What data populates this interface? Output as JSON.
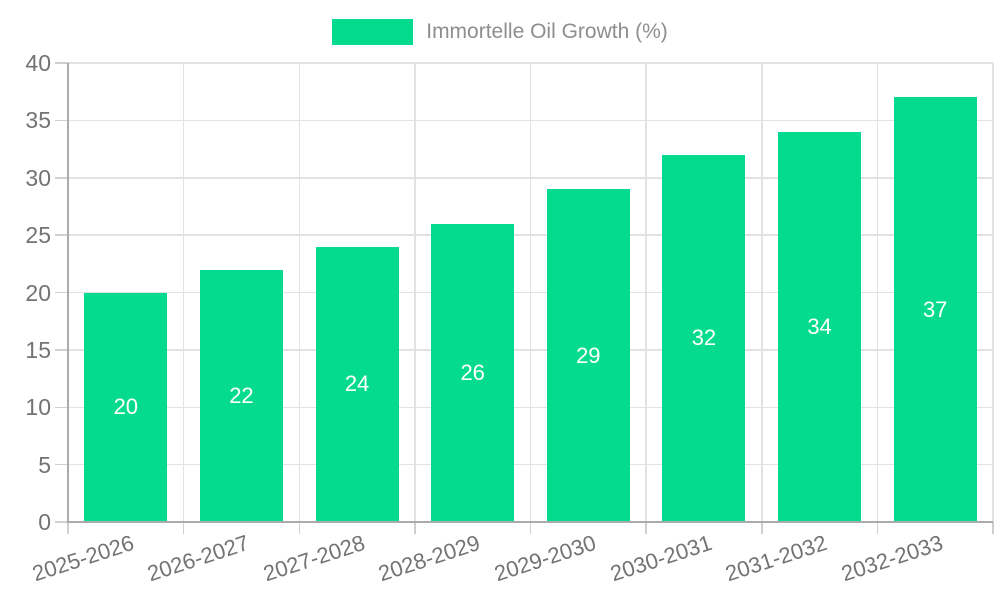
{
  "chart_data": {
    "type": "bar",
    "title": "",
    "series_name": "Immortelle Oil Growth (%)",
    "categories": [
      "2025-2026",
      "2026-2027",
      "2027-2028",
      "2028-2029",
      "2029-2030",
      "2030-2031",
      "2031-2032",
      "2032-2033"
    ],
    "values": [
      20,
      22,
      24,
      26,
      29,
      32,
      34,
      37
    ],
    "xlabel": "",
    "ylabel": "",
    "ylim": [
      0,
      40
    ],
    "yticks": [
      0,
      5,
      10,
      15,
      20,
      25,
      30,
      35,
      40
    ],
    "grid": true,
    "legend_position": "top-center",
    "value_labels": "inside-center",
    "x_label_rotation_deg": -18,
    "bar_color": "#05DB8E",
    "value_label_color": "#FFFFFF",
    "legend_text_color": "#8E8E8E",
    "axis_label_color": "#737373",
    "grid_color": "#E2E2E2",
    "tick_color": "#CFCFCF",
    "axis_line_color": "#ABABAB"
  }
}
